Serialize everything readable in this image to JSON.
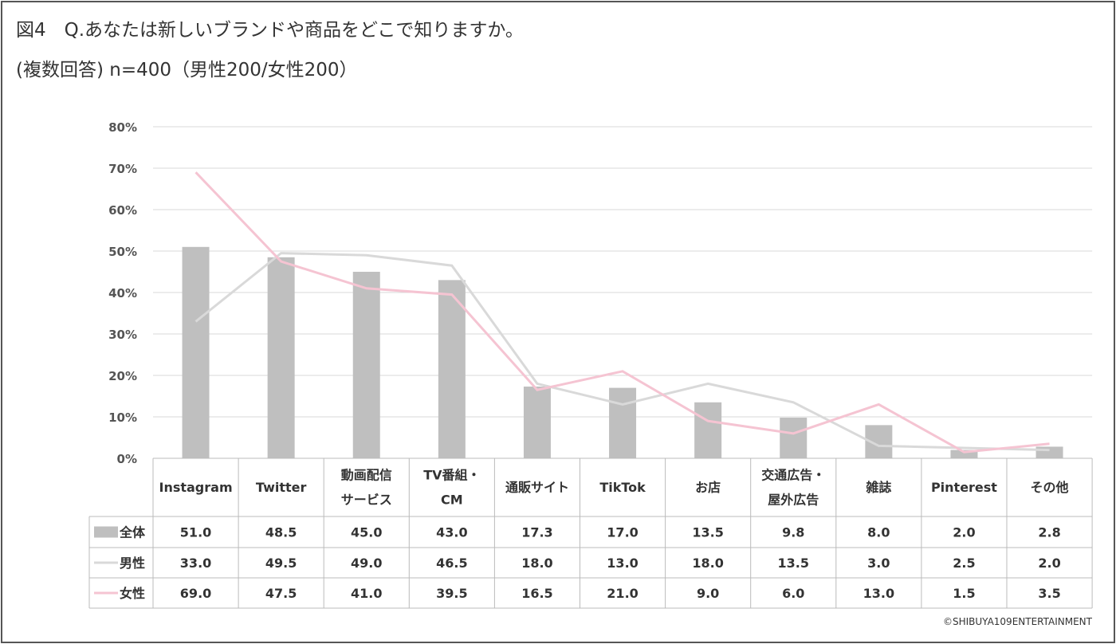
{
  "title": "図4　Q.あなたは新しいブランドや商品をどこで知りますか。",
  "subtitle": "(複数回答) n=400（男性200/女性200）",
  "credit": "©SHIBUYA109ENTERTAINMENT",
  "chart_data": {
    "type": "bar",
    "title": "Q.あなたは新しいブランドや商品をどこで知りますか。",
    "ylim": [
      0,
      80
    ],
    "yticks": [
      "0%",
      "10%",
      "20%",
      "30%",
      "40%",
      "50%",
      "60%",
      "70%",
      "80%"
    ],
    "categories": [
      [
        "Instagram"
      ],
      [
        "Twitter"
      ],
      [
        "動画配信",
        "サービス"
      ],
      [
        "TV番組・",
        "CM"
      ],
      [
        "通販サイト"
      ],
      [
        "TikTok"
      ],
      [
        "お店"
      ],
      [
        "交通広告・",
        "屋外広告"
      ],
      [
        "雑誌"
      ],
      [
        "Pinterest"
      ],
      [
        "その他"
      ]
    ],
    "series": [
      {
        "name": "全体",
        "type": "bar",
        "color": "#bfbfbf",
        "values": [
          51.0,
          48.5,
          45.0,
          43.0,
          17.3,
          17.0,
          13.5,
          9.8,
          8.0,
          2.0,
          2.8
        ]
      },
      {
        "name": "男性",
        "type": "line",
        "color": "#d9d9d9",
        "values": [
          33.0,
          49.5,
          49.0,
          46.5,
          18.0,
          13.0,
          18.0,
          13.5,
          3.0,
          2.5,
          2.0
        ]
      },
      {
        "name": "女性",
        "type": "line",
        "color": "#f5c4d2",
        "values": [
          69.0,
          47.5,
          41.0,
          39.5,
          16.5,
          21.0,
          9.0,
          6.0,
          13.0,
          1.5,
          3.5
        ]
      }
    ],
    "legend": "data-table"
  }
}
